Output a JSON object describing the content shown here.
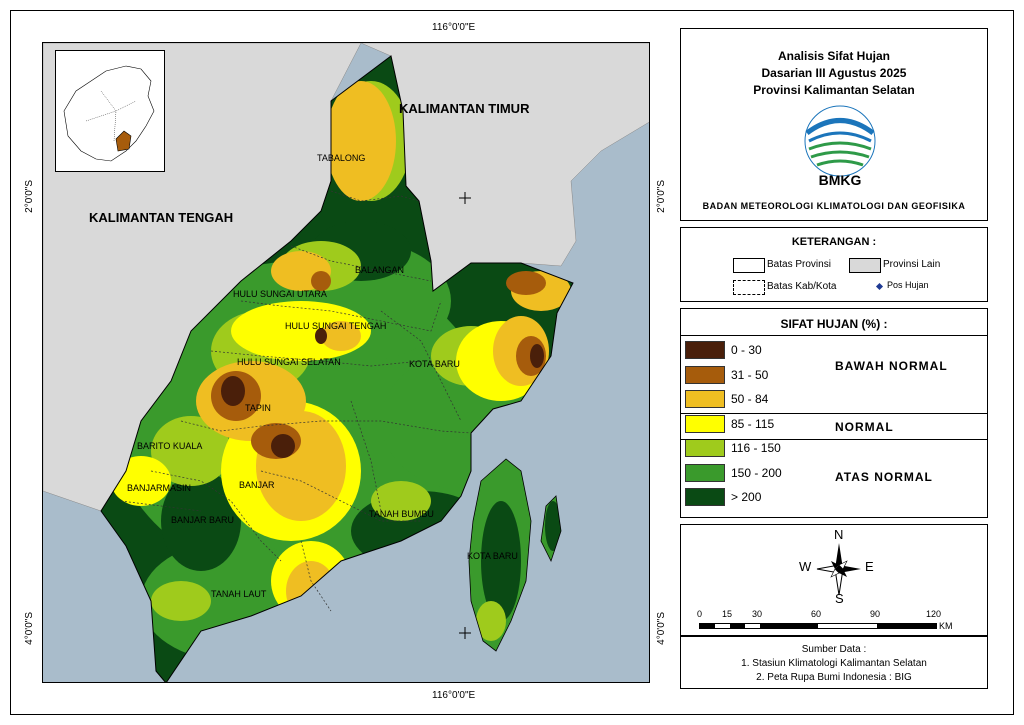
{
  "title": {
    "line1": "Analisis Sifat Hujan",
    "line2": "Dasarian III Agustus 2025",
    "line3": "Provinsi Kalimantan Selatan",
    "logo_text": "BMKG",
    "agency": "BADAN METEOROLOGI KLIMATOLOGI DAN GEOFISIKA"
  },
  "coordinates": {
    "top": "116°0'0\"E",
    "bottom": "116°0'0\"E",
    "left_top": "2°0'0\"S",
    "left_bottom": "4°0'0\"S",
    "right_top": "2°0'0\"S",
    "right_bottom": "4°0'0\"S"
  },
  "map_labels": {
    "kalimantan_timur": "KALIMANTAN TIMUR",
    "kalimantan_tengah": "KALIMANTAN TENGAH",
    "tabalong": "TABALONG",
    "balangan": "BALANGAN",
    "hulu_sungai_utara": "HULU SUNGAI UTARA",
    "hulu_sungai_tengah": "HULU SUNGAI TENGAH",
    "hulu_sungai_selatan": "HULU SUNGAI SELATAN",
    "kota_baru_north": "KOTA BARU",
    "tapin": "TAPIN",
    "barito_kuala": "BARITO KUALA",
    "banjarmasin": "BANJARMASIN",
    "banjar": "BANJAR",
    "banjar_baru": "BANJAR BARU",
    "tanah_bumbu": "TANAH BUMBU",
    "kota_baru_south": "KOTA BARU",
    "tanah_laut": "TANAH LAUT"
  },
  "keterangan": {
    "title": "KETERANGAN :",
    "batas_provinsi": "Batas Provinsi",
    "provinsi_lain": "Provinsi Lain",
    "batas_kab": "Batas Kab/Kota",
    "pos_hujan": "Pos Hujan"
  },
  "legend": {
    "title": "SIFAT HUJAN (%) :",
    "classes": [
      {
        "range": "0 - 30",
        "color": "#4a1f0a"
      },
      {
        "range": "31 - 50",
        "color": "#a65c0c"
      },
      {
        "range": "50 - 84",
        "color": "#efbe22"
      },
      {
        "range": "85 - 115",
        "color": "#ffff00"
      },
      {
        "range": "116 - 150",
        "color": "#9fcb1c"
      },
      {
        "range": "150 - 200",
        "color": "#3a9a2c"
      },
      {
        "range": "> 200",
        "color": "#0a4a14"
      }
    ],
    "categories": {
      "bawah": "BAWAH NORMAL",
      "normal": "NORMAL",
      "atas": "ATAS NORMAL"
    }
  },
  "compass": {
    "n": "N",
    "s": "S",
    "e": "E",
    "w": "W"
  },
  "scale": {
    "ticks": [
      "0",
      "15",
      "30",
      "60",
      "90",
      "120"
    ],
    "unit": "KM"
  },
  "source": {
    "title": "Sumber Data :",
    "line1": "1. Stasiun Klimatologi Kalimantan Selatan",
    "line2": "2. Peta Rupa Bumi Indonesia : BIG"
  },
  "colors": {
    "sea": "#a9bccb",
    "other_province": "#d9d9d9",
    "brown_dark": "#4a1f0a",
    "brown": "#a65c0c",
    "orange": "#efbe22",
    "yellow": "#ffff00",
    "light_green": "#9fcb1c",
    "green": "#3a9a2c",
    "dark_green": "#0a4a14"
  }
}
